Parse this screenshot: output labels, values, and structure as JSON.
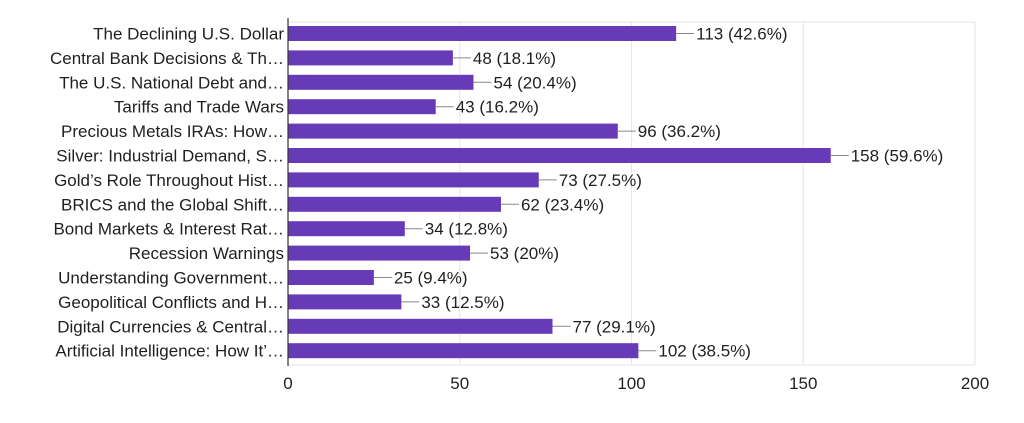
{
  "chart_data": {
    "type": "bar",
    "orientation": "horizontal",
    "categories": [
      "The Declining U.S. Dollar",
      "Central Bank Decisions & Th…",
      "The U.S. National Debt and…",
      "Tariffs and Trade Wars",
      "Precious Metals IRAs: How…",
      "Silver: Industrial Demand, S…",
      "Gold’s Role Throughout Hist…",
      "BRICS and the Global Shift…",
      "Bond Markets & Interest Rat…",
      "Recession Warnings",
      "Understanding Government…",
      "Geopolitical Conflicts and H…",
      "Digital Currencies & Central…",
      "Artificial Intelligence: How It’…"
    ],
    "values": [
      113,
      48,
      54,
      43,
      96,
      158,
      73,
      62,
      34,
      53,
      25,
      33,
      77,
      102
    ],
    "data_labels": [
      "113 (42.6%)",
      "48 (18.1%)",
      "54 (20.4%)",
      "43 (16.2%)",
      "96 (36.2%)",
      "158 (59.6%)",
      "73 (27.5%)",
      "62 (23.4%)",
      "34 (12.8%)",
      "53 (20%)",
      "25 (9.4%)",
      "33 (12.5%)",
      "77 (29.1%)",
      "102 (38.5%)"
    ],
    "xlim": [
      0,
      200
    ],
    "xticks": [
      "0",
      "50",
      "100",
      "150",
      "200"
    ],
    "grid": true,
    "bar_color": "#673ab7",
    "title": "",
    "xlabel": "",
    "ylabel": ""
  }
}
